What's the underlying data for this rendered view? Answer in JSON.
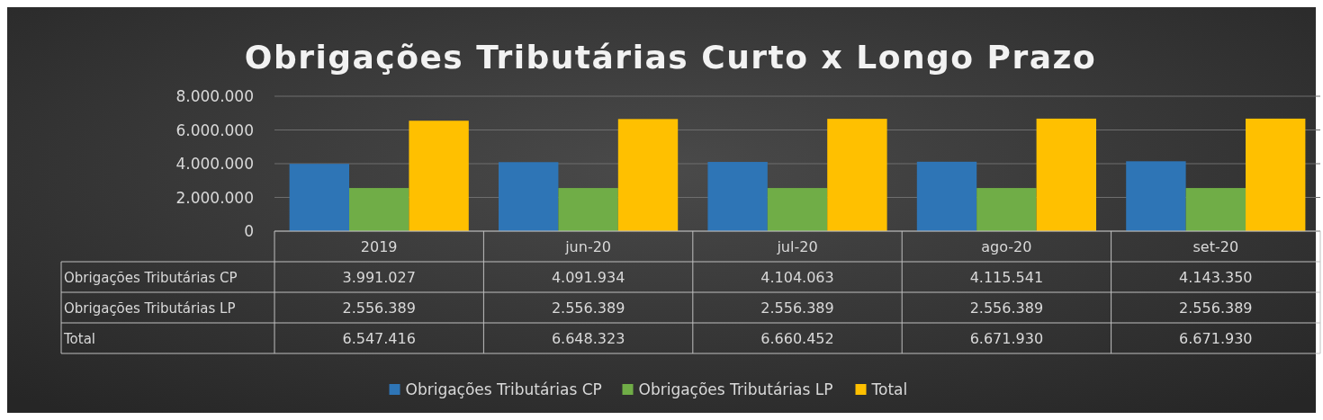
{
  "chart_data": {
    "type": "bar",
    "title": "Obrigações Tributárias Curto x Longo Prazo",
    "categories": [
      "2019",
      "jun-20",
      "jul-20",
      "ago-20",
      "set-20"
    ],
    "series": [
      {
        "name": "Obrigações Tributárias CP",
        "color": "#2e75b6",
        "values": [
          3991027,
          4091934,
          4104063,
          4115541,
          4143350
        ],
        "value_labels": [
          "3.991.027",
          "4.091.934",
          "4.104.063",
          "4.115.541",
          "4.143.350"
        ]
      },
      {
        "name": "Obrigações Tributárias LP",
        "color": "#70ad47",
        "values": [
          2556389,
          2556389,
          2556389,
          2556389,
          2556389
        ],
        "value_labels": [
          "2.556.389",
          "2.556.389",
          "2.556.389",
          "2.556.389",
          "2.556.389"
        ]
      },
      {
        "name": "Total",
        "color": "#ffc000",
        "values": [
          6547416,
          6648323,
          6660452,
          6671930,
          6671930
        ],
        "value_labels": [
          "6.547.416",
          "6.648.323",
          "6.660.452",
          "6.671.930",
          "6.671.930"
        ]
      }
    ],
    "ylim": [
      0,
      8000000
    ],
    "yticks": [
      {
        "value": 0,
        "label": "0"
      },
      {
        "value": 2000000,
        "label": "2.000.000"
      },
      {
        "value": 4000000,
        "label": "4.000.000"
      },
      {
        "value": 6000000,
        "label": "6.000.000"
      },
      {
        "value": 8000000,
        "label": "8.000.000"
      }
    ],
    "grid": "y",
    "legend": "bottom"
  }
}
